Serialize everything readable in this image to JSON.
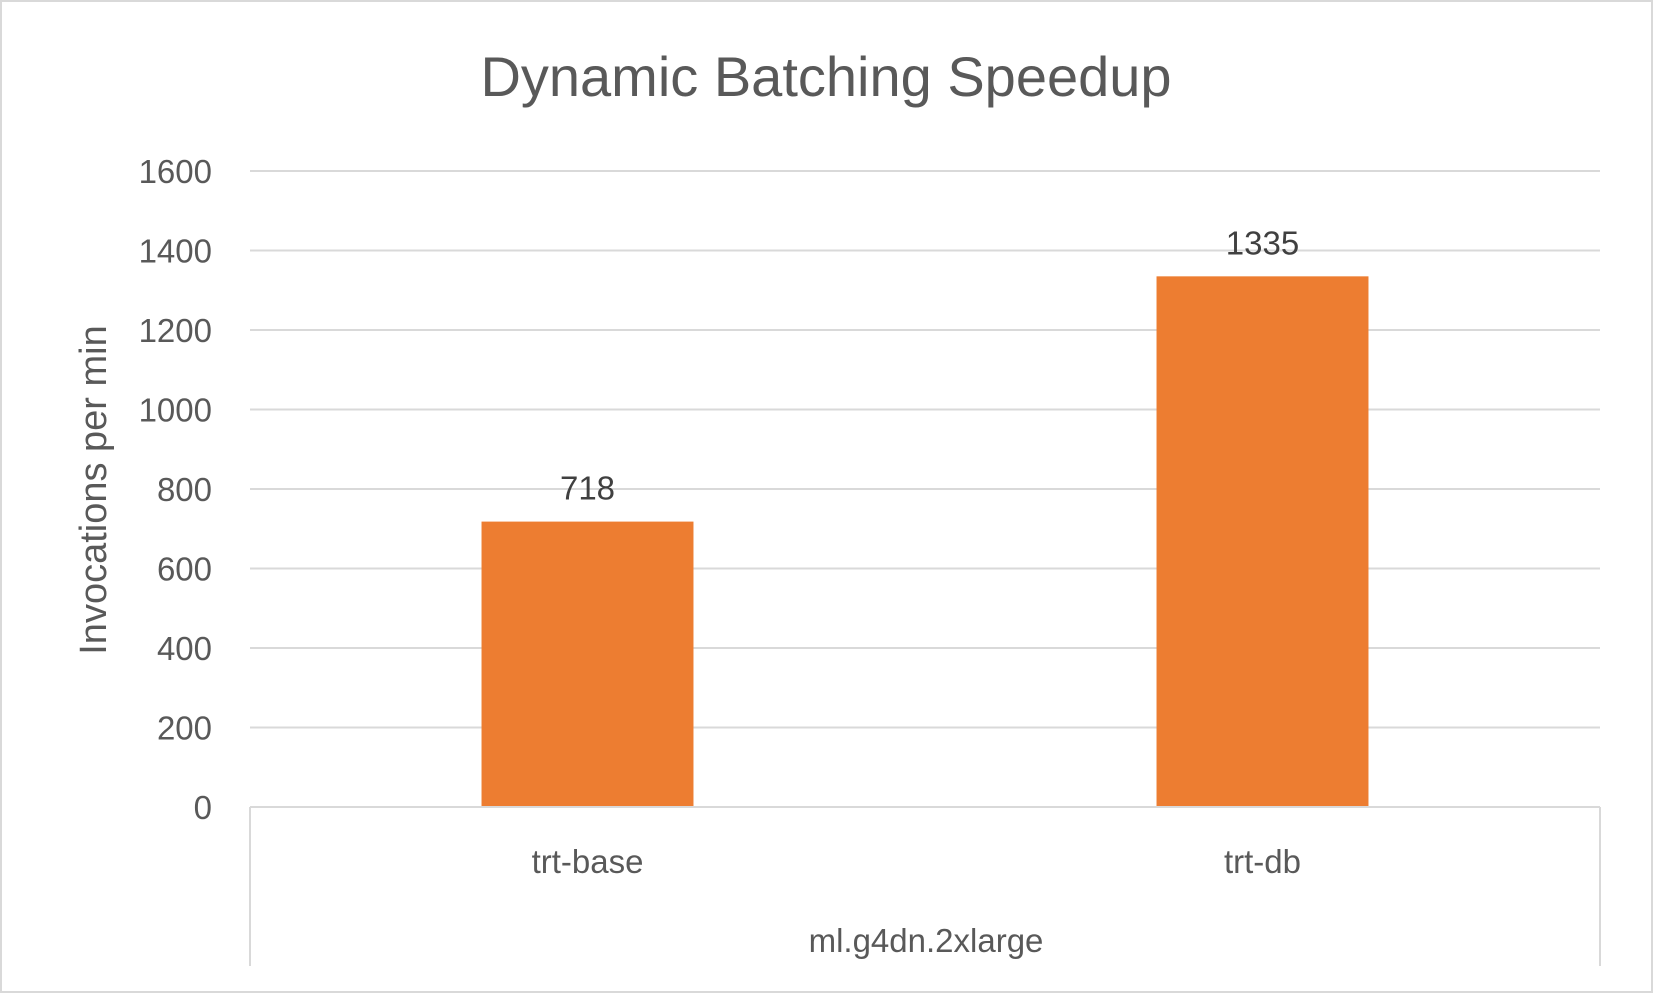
{
  "chart_data": {
    "type": "bar",
    "title": "Dynamic Batching Speedup",
    "xlabel": "",
    "ylabel": "Invocations per min",
    "group_label": "ml.g4dn.2xlarge",
    "categories": [
      "trt-base",
      "trt-db"
    ],
    "series": [
      {
        "values": [
          718,
          1335
        ],
        "color": "#ed7d31"
      }
    ],
    "ylim": [
      0,
      1600
    ],
    "yticks": [
      0,
      200,
      400,
      600,
      800,
      1000,
      1200,
      1400,
      1600
    ],
    "data_labels": [
      "718",
      "1335"
    ],
    "grid": true,
    "legend": "none"
  }
}
